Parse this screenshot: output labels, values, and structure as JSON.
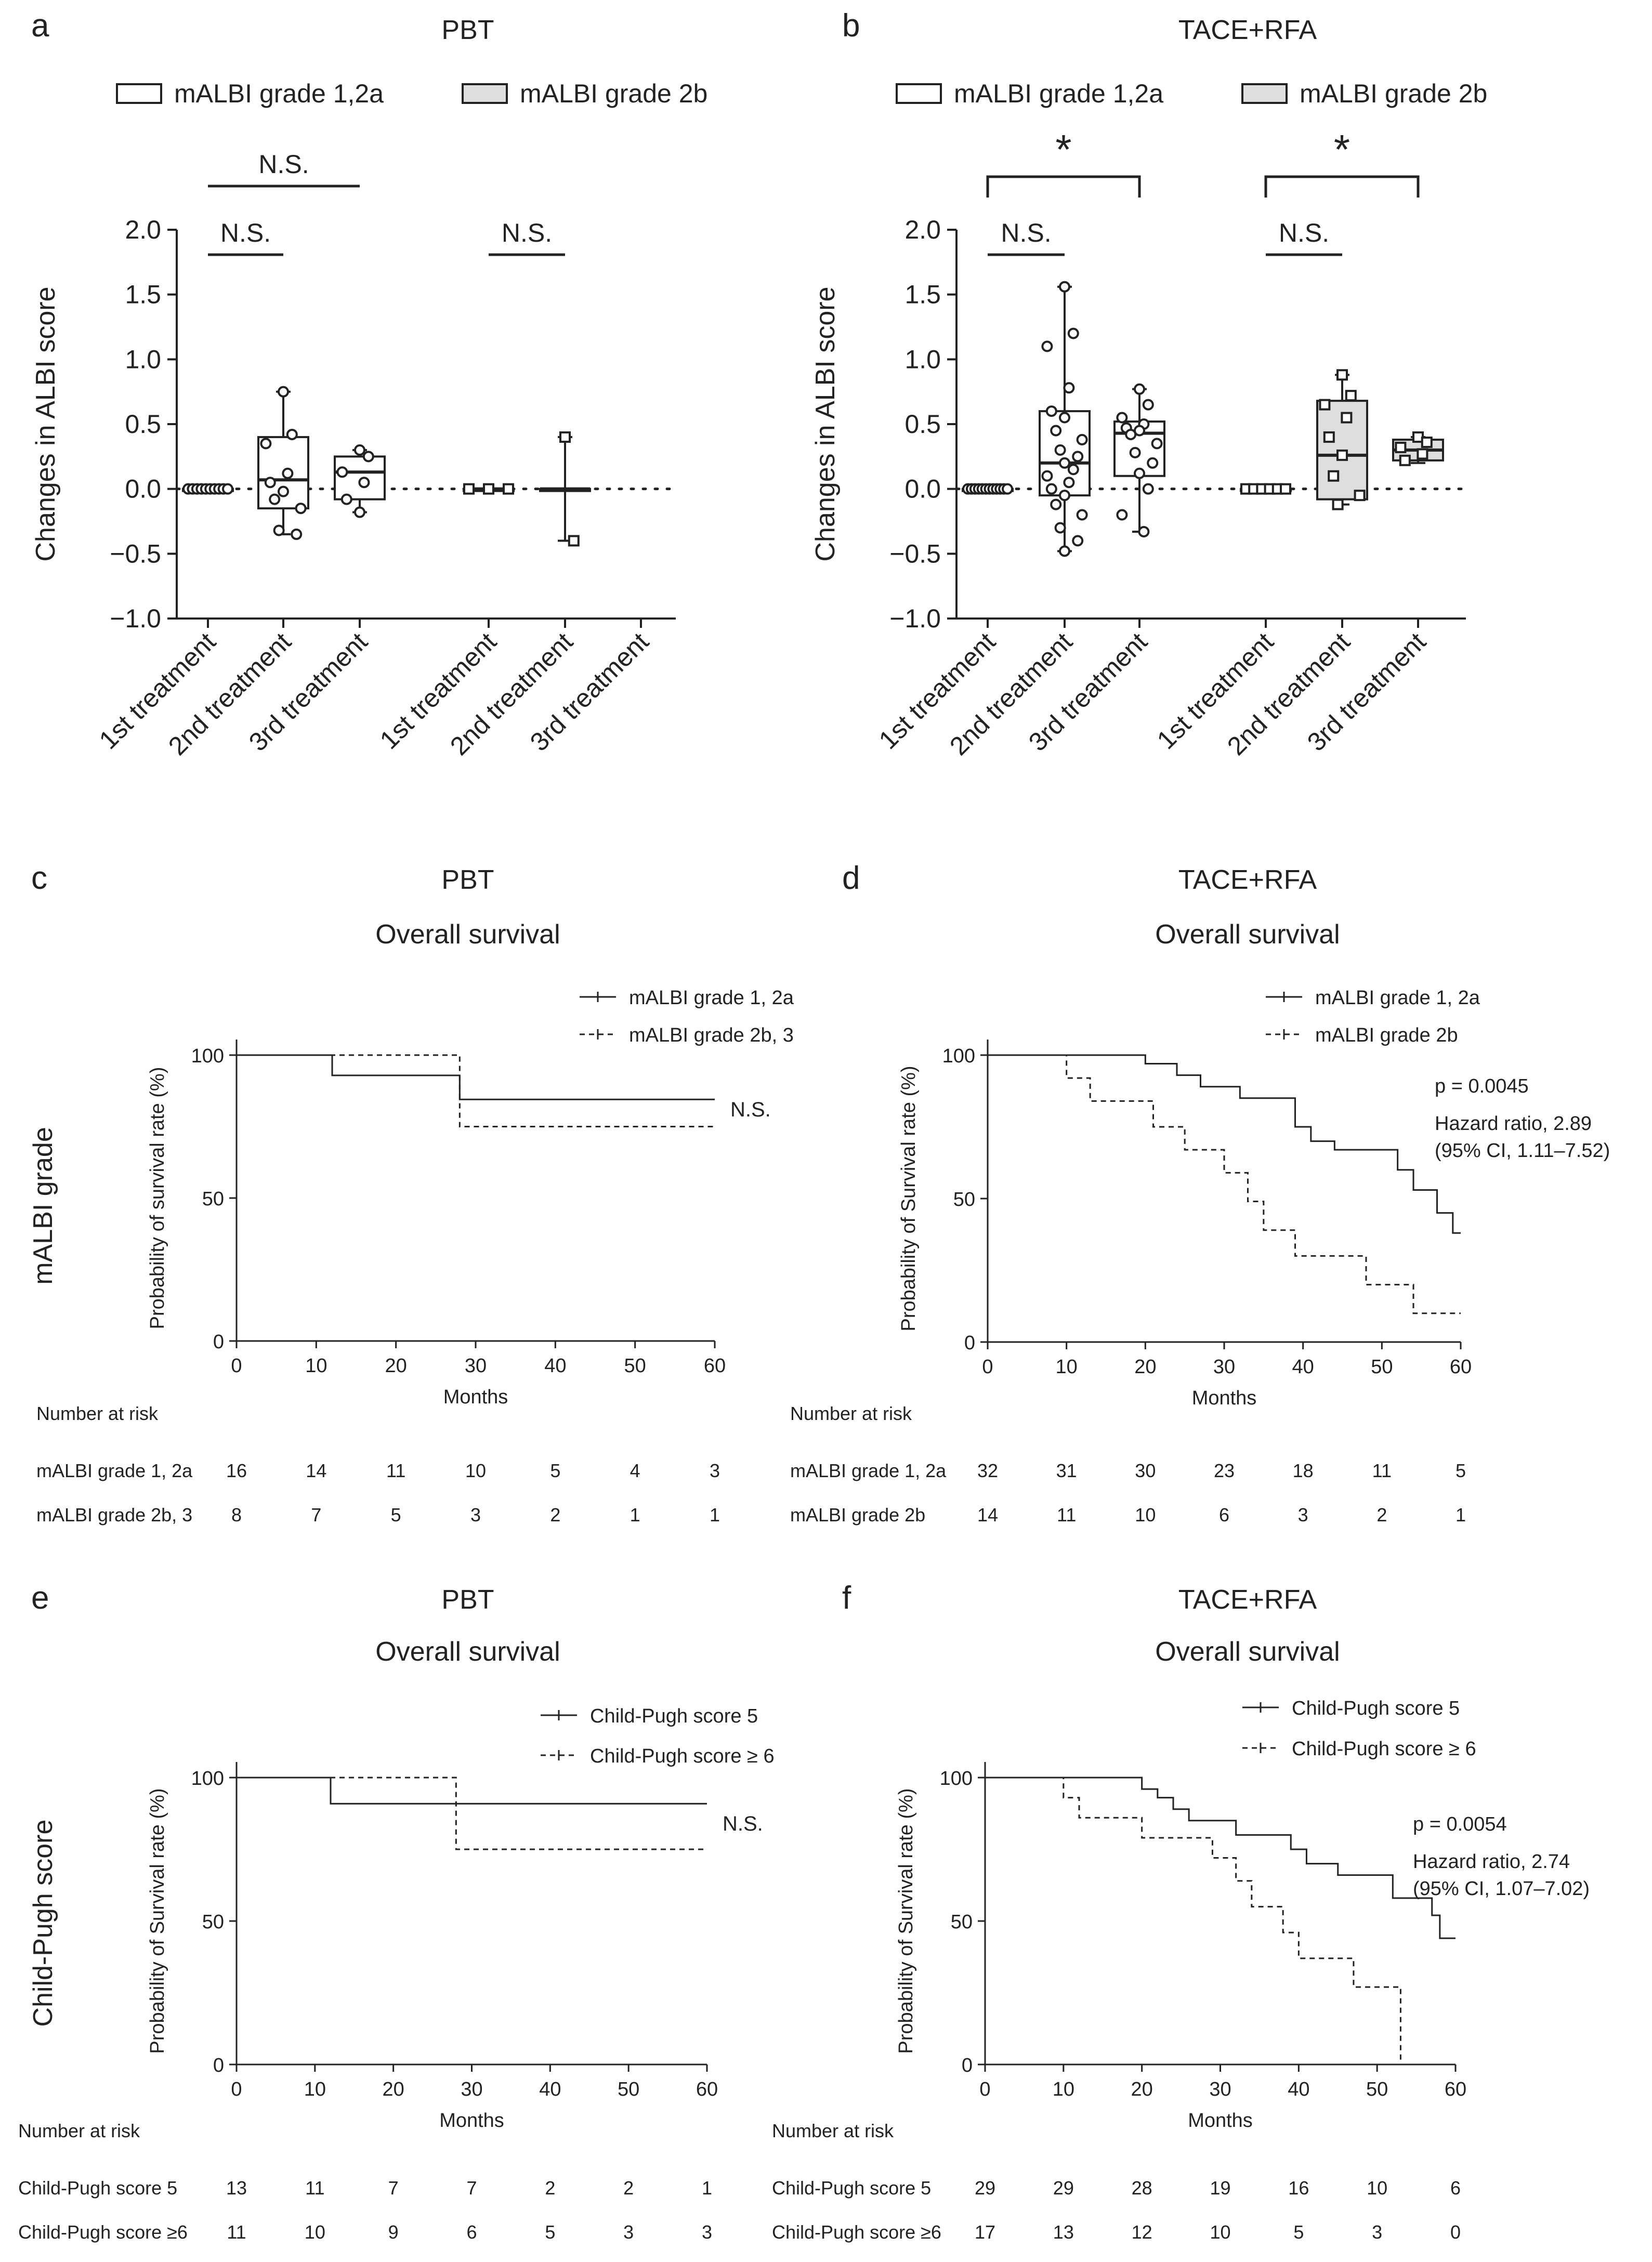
{
  "panels": {
    "a": {
      "letter": "a",
      "title": "PBT"
    },
    "b": {
      "letter": "b",
      "title": "TACE+RFA"
    },
    "c": {
      "letter": "c",
      "title": "PBT",
      "subtitle": "Overall survival"
    },
    "d": {
      "letter": "d",
      "title": "TACE+RFA",
      "subtitle": "Overall survival"
    },
    "e": {
      "letter": "e",
      "title": "PBT",
      "subtitle": "Overall survival"
    },
    "f": {
      "letter": "f",
      "title": "TACE+RFA",
      "subtitle": "Overall survival"
    }
  },
  "row_labels": {
    "mid": "mALBI grade",
    "bottom": "Child-Pugh score"
  },
  "chart_data": [
    {
      "id": "a",
      "type": "box",
      "title": "PBT",
      "ylabel": "Changes in ALBI score",
      "ylim": [
        -1.0,
        2.0
      ],
      "yticks": [
        "2.0",
        "1.5",
        "1.0",
        "0.5",
        "0.0",
        "−0.5",
        "−1.0"
      ],
      "categories": [
        "1st treatment",
        "2nd treatment",
        "3rd treatment",
        "1st treatment",
        "2nd treatment",
        "3rd treatment"
      ],
      "legend": [
        "mALBI grade 1,2a",
        "mALBI grade 2b"
      ],
      "series": [
        {
          "name": "mALBI grade 1,2a",
          "groups": [
            {
              "label": "1st treatment",
              "min": 0,
              "q1": 0,
              "median": 0,
              "q3": 0,
              "max": 0,
              "points": [
                0,
                0,
                0,
                0,
                0,
                0,
                0,
                0,
                0,
                0
              ]
            },
            {
              "label": "2nd treatment",
              "min": -0.35,
              "q1": -0.15,
              "median": 0.07,
              "q3": 0.4,
              "max": 0.75,
              "points": [
                0.75,
                0.42,
                0.35,
                0.12,
                0.05,
                -0.02,
                -0.08,
                -0.15,
                -0.32,
                -0.35
              ]
            },
            {
              "label": "3rd treatment",
              "min": -0.18,
              "q1": -0.08,
              "median": 0.13,
              "q3": 0.25,
              "max": 0.3,
              "points": [
                0.3,
                0.25,
                0.13,
                0.05,
                -0.08,
                -0.18
              ]
            }
          ]
        },
        {
          "name": "mALBI grade 2b",
          "groups": [
            {
              "label": "1st treatment",
              "min": 0,
              "q1": 0,
              "median": 0,
              "q3": 0,
              "max": 0,
              "points": [
                0,
                0,
                0
              ]
            },
            {
              "label": "2nd treatment",
              "min": -0.4,
              "q1": 0,
              "median": 0,
              "q3": 0,
              "max": 0.4,
              "points": [
                0.4,
                -0.4
              ]
            },
            {
              "label": "3rd treatment",
              "min": null,
              "q1": null,
              "median": null,
              "q3": null,
              "max": null,
              "points": []
            }
          ]
        }
      ],
      "annotations": [
        "N.S.",
        "N.S.",
        "N.S."
      ]
    },
    {
      "id": "b",
      "type": "box",
      "title": "TACE+RFA",
      "ylabel": "Changes in ALBI score",
      "ylim": [
        -1.0,
        2.0
      ],
      "yticks": [
        "2.0",
        "1.5",
        "1.0",
        "0.5",
        "0.0",
        "−0.5",
        "−1.0"
      ],
      "categories": [
        "1st treatment",
        "2nd treatment",
        "3rd treatment",
        "1st treatment",
        "2nd treatment",
        "3rd treatment"
      ],
      "legend": [
        "mALBI grade 1,2a",
        "mALBI grade 2b"
      ],
      "series": [
        {
          "name": "mALBI grade 1,2a",
          "groups": [
            {
              "label": "1st treatment",
              "min": 0,
              "q1": 0,
              "median": 0,
              "q3": 0,
              "max": 0,
              "points": [
                0,
                0,
                0,
                0,
                0,
                0,
                0,
                0,
                0,
                0,
                0,
                0
              ]
            },
            {
              "label": "2nd treatment",
              "min": -0.48,
              "q1": -0.05,
              "median": 0.2,
              "q3": 0.6,
              "max": 1.56,
              "points": [
                1.56,
                1.2,
                1.1,
                0.78,
                0.6,
                0.55,
                0.45,
                0.38,
                0.3,
                0.25,
                0.2,
                0.15,
                0.1,
                0.05,
                0.0,
                -0.05,
                -0.12,
                -0.2,
                -0.3,
                -0.4,
                -0.48
              ]
            },
            {
              "label": "3rd treatment",
              "min": -0.33,
              "q1": 0.1,
              "median": 0.43,
              "q3": 0.52,
              "max": 0.77,
              "points": [
                0.77,
                0.65,
                0.55,
                0.5,
                0.47,
                0.45,
                0.42,
                0.35,
                0.28,
                0.2,
                0.12,
                0.0,
                -0.2,
                -0.33
              ]
            }
          ]
        },
        {
          "name": "mALBI grade 2b",
          "groups": [
            {
              "label": "1st treatment",
              "min": 0,
              "q1": 0,
              "median": 0,
              "q3": 0,
              "max": 0,
              "points": [
                0,
                0,
                0,
                0,
                0,
                0
              ]
            },
            {
              "label": "2nd treatment",
              "min": -0.12,
              "q1": -0.08,
              "median": 0.26,
              "q3": 0.68,
              "max": 0.88,
              "points": [
                0.88,
                0.72,
                0.65,
                0.55,
                0.4,
                0.26,
                0.1,
                -0.05,
                -0.12
              ]
            },
            {
              "label": "3rd treatment",
              "min": 0.2,
              "q1": 0.22,
              "median": 0.3,
              "q3": 0.38,
              "max": 0.4,
              "points": [
                0.4,
                0.36,
                0.32,
                0.27,
                0.22
              ]
            }
          ]
        }
      ],
      "annotations": [
        "N.S.",
        "N.S.",
        "*",
        "*"
      ]
    },
    {
      "id": "c",
      "type": "line",
      "subtype": "kaplan-meier",
      "title": "PBT",
      "subtitle": "Overall survival",
      "xlabel": "Months",
      "ylabel": "Probability of survival rate (%)",
      "xlim": [
        0,
        60
      ],
      "ylim": [
        0,
        100
      ],
      "xticks": [
        "0",
        "10",
        "20",
        "30",
        "40",
        "50",
        "60"
      ],
      "yticks": [
        "100",
        "50",
        "0"
      ],
      "series": [
        {
          "name": "mALBI grade 1, 2a",
          "style": "solid",
          "steps": [
            [
              0,
              100
            ],
            [
              12,
              92.9
            ],
            [
              28,
              84.5
            ],
            [
              60,
              84.5
            ]
          ]
        },
        {
          "name": "mALBI grade 2b, 3",
          "style": "dashed",
          "steps": [
            [
              0,
              100
            ],
            [
              28,
              75
            ],
            [
              60,
              75
            ]
          ]
        }
      ],
      "annotation": "N.S.",
      "risk_table": {
        "header": "Number at risk",
        "rows": [
          {
            "label": "mALBI grade 1, 2a",
            "values": [
              "16",
              "14",
              "11",
              "10",
              "5",
              "4",
              "3"
            ]
          },
          {
            "label": "mALBI grade 2b, 3",
            "values": [
              "8",
              "7",
              "5",
              "3",
              "2",
              "1",
              "1"
            ]
          }
        ]
      }
    },
    {
      "id": "d",
      "type": "line",
      "subtype": "kaplan-meier",
      "title": "TACE+RFA",
      "subtitle": "Overall survival",
      "xlabel": "Months",
      "ylabel": "Probability of Survival rate (%)",
      "xlim": [
        0,
        60
      ],
      "ylim": [
        0,
        100
      ],
      "xticks": [
        "0",
        "10",
        "20",
        "30",
        "40",
        "50",
        "60"
      ],
      "yticks": [
        "100",
        "50",
        "0"
      ],
      "series": [
        {
          "name": "mALBI grade 1, 2a",
          "style": "solid",
          "steps": [
            [
              0,
              100
            ],
            [
              20,
              97
            ],
            [
              24,
              93
            ],
            [
              27,
              89
            ],
            [
              32,
              85
            ],
            [
              39,
              75
            ],
            [
              41,
              70
            ],
            [
              44,
              67
            ],
            [
              52,
              60
            ],
            [
              54,
              53
            ],
            [
              57,
              45
            ],
            [
              59,
              38
            ],
            [
              60,
              38
            ]
          ]
        },
        {
          "name": "mALBI grade 2b",
          "style": "dashed",
          "steps": [
            [
              0,
              100
            ],
            [
              10,
              92
            ],
            [
              13,
              84
            ],
            [
              21,
              75
            ],
            [
              25,
              67
            ],
            [
              30,
              59
            ],
            [
              33,
              49
            ],
            [
              35,
              39
            ],
            [
              39,
              30
            ],
            [
              48,
              20
            ],
            [
              54,
              10
            ],
            [
              60,
              10
            ]
          ]
        }
      ],
      "stats": [
        "p = 0.0045",
        "Hazard ratio, 2.89",
        "(95% CI, 1.11–7.52)"
      ],
      "risk_table": {
        "header": "Number at risk",
        "rows": [
          {
            "label": "mALBI grade 1, 2a",
            "values": [
              "32",
              "31",
              "30",
              "23",
              "18",
              "11",
              "5"
            ]
          },
          {
            "label": "mALBI grade 2b",
            "values": [
              "14",
              "11",
              "10",
              "6",
              "3",
              "2",
              "1"
            ]
          }
        ]
      }
    },
    {
      "id": "e",
      "type": "line",
      "subtype": "kaplan-meier",
      "title": "PBT",
      "subtitle": "Overall survival",
      "xlabel": "Months",
      "ylabel": "Probability of Survival rate (%)",
      "xlim": [
        0,
        60
      ],
      "ylim": [
        0,
        100
      ],
      "xticks": [
        "0",
        "10",
        "20",
        "30",
        "40",
        "50",
        "60"
      ],
      "yticks": [
        "100",
        "50",
        "0"
      ],
      "series": [
        {
          "name": "Child-Pugh score 5",
          "style": "solid",
          "steps": [
            [
              0,
              100
            ],
            [
              12,
              90.9
            ],
            [
              60,
              90.9
            ]
          ]
        },
        {
          "name": "Child-Pugh score ≥ 6",
          "style": "dashed",
          "steps": [
            [
              0,
              100
            ],
            [
              28,
              75
            ],
            [
              60,
              75
            ]
          ]
        }
      ],
      "annotation": "N.S.",
      "risk_table": {
        "header": "Number at risk",
        "rows": [
          {
            "label": "Child-Pugh score 5",
            "values": [
              "13",
              "11",
              "7",
              "7",
              "2",
              "2",
              "1"
            ]
          },
          {
            "label": "Child-Pugh score ≥6",
            "values": [
              "11",
              "10",
              "9",
              "6",
              "5",
              "3",
              "3"
            ]
          }
        ]
      }
    },
    {
      "id": "f",
      "type": "line",
      "subtype": "kaplan-meier",
      "title": "TACE+RFA",
      "subtitle": "Overall survival",
      "xlabel": "Months",
      "ylabel": "Probability of Survival rate (%)",
      "xlim": [
        0,
        60
      ],
      "ylim": [
        0,
        100
      ],
      "xticks": [
        "0",
        "10",
        "20",
        "30",
        "40",
        "50",
        "60"
      ],
      "yticks": [
        "100",
        "50",
        "0"
      ],
      "series": [
        {
          "name": "Child-Pugh score 5",
          "style": "solid",
          "steps": [
            [
              0,
              100
            ],
            [
              20,
              96
            ],
            [
              22,
              93
            ],
            [
              24,
              89
            ],
            [
              26,
              85
            ],
            [
              32,
              80
            ],
            [
              39,
              75
            ],
            [
              41,
              70
            ],
            [
              45,
              66
            ],
            [
              52,
              58
            ],
            [
              57,
              52
            ],
            [
              58,
              44
            ],
            [
              60,
              44
            ]
          ]
        },
        {
          "name": "Child-Pugh score ≥ 6",
          "style": "dashed",
          "steps": [
            [
              0,
              100
            ],
            [
              10,
              93
            ],
            [
              12,
              86
            ],
            [
              20,
              79
            ],
            [
              29,
              72
            ],
            [
              32,
              64
            ],
            [
              34,
              55
            ],
            [
              38,
              46
            ],
            [
              40,
              37
            ],
            [
              47,
              27
            ],
            [
              53,
              0
            ]
          ]
        }
      ],
      "stats": [
        "p = 0.0054",
        "Hazard ratio, 2.74",
        "(95% CI, 1.07–7.02)"
      ],
      "risk_table": {
        "header": "Number at risk",
        "rows": [
          {
            "label": "Child-Pugh score 5",
            "values": [
              "29",
              "29",
              "28",
              "19",
              "16",
              "10",
              "6"
            ]
          },
          {
            "label": "Child-Pugh score ≥6",
            "values": [
              "17",
              "13",
              "12",
              "10",
              "5",
              "3",
              "0"
            ]
          }
        ]
      }
    }
  ]
}
